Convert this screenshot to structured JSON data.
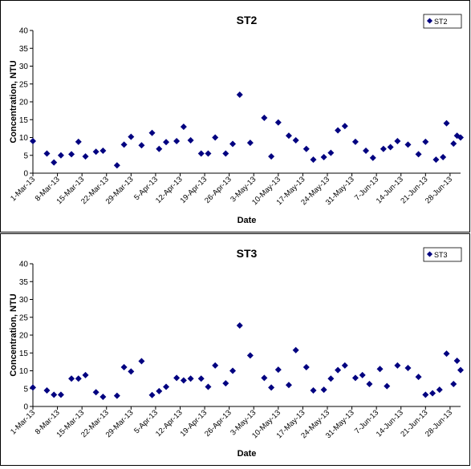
{
  "charts": [
    {
      "type": "scatter",
      "title": "ST2",
      "xlabel": "Date",
      "ylabel": "Concentration, NTU",
      "legend": {
        "label": "ST2",
        "placement": "top-right"
      },
      "color": "#000080",
      "ylim": [
        0,
        40
      ],
      "yticks": [
        "0",
        "5",
        "10",
        "15",
        "20",
        "25",
        "30",
        "35",
        "40"
      ],
      "xlim": [
        "2013-03-01",
        "2013-07-01"
      ],
      "xticks": [
        "1-Mar-13",
        "8-Mar-13",
        "15-Mar-13",
        "22-Mar-13",
        "29-Mar-13",
        "5-Apr-13",
        "12-Apr-13",
        "19-Apr-13",
        "26-Apr-13",
        "3-May-13",
        "10-May-13",
        "17-May-13",
        "24-May-13",
        "31-May-13",
        "7-Jun-13",
        "14-Jun-13",
        "21-Jun-13",
        "28-Jun-13"
      ],
      "points": [
        [
          "2013-03-01",
          9.0
        ],
        [
          "2013-03-05",
          5.5
        ],
        [
          "2013-03-07",
          3.0
        ],
        [
          "2013-03-09",
          5.0
        ],
        [
          "2013-03-12",
          5.3
        ],
        [
          "2013-03-14",
          8.8
        ],
        [
          "2013-03-16",
          4.7
        ],
        [
          "2013-03-19",
          6.0
        ],
        [
          "2013-03-21",
          6.3
        ],
        [
          "2013-03-25",
          2.2
        ],
        [
          "2013-03-27",
          8.0
        ],
        [
          "2013-03-29",
          10.2
        ],
        [
          "2013-04-01",
          7.8
        ],
        [
          "2013-04-04",
          11.3
        ],
        [
          "2013-04-06",
          6.8
        ],
        [
          "2013-04-08",
          8.7
        ],
        [
          "2013-04-11",
          9.0
        ],
        [
          "2013-04-13",
          13.0
        ],
        [
          "2013-04-15",
          9.2
        ],
        [
          "2013-04-18",
          5.5
        ],
        [
          "2013-04-20",
          5.5
        ],
        [
          "2013-04-22",
          10.0
        ],
        [
          "2013-04-25",
          5.5
        ],
        [
          "2013-04-27",
          8.2
        ],
        [
          "2013-04-29",
          22.0
        ],
        [
          "2013-05-02",
          8.5
        ],
        [
          "2013-05-06",
          15.5
        ],
        [
          "2013-05-08",
          4.7
        ],
        [
          "2013-05-10",
          14.2
        ],
        [
          "2013-05-13",
          10.5
        ],
        [
          "2013-05-15",
          9.2
        ],
        [
          "2013-05-18",
          6.8
        ],
        [
          "2013-05-20",
          3.8
        ],
        [
          "2013-05-23",
          4.5
        ],
        [
          "2013-05-25",
          5.7
        ],
        [
          "2013-05-27",
          12.0
        ],
        [
          "2013-05-29",
          13.2
        ],
        [
          "2013-06-01",
          8.8
        ],
        [
          "2013-06-04",
          6.3
        ],
        [
          "2013-06-06",
          4.3
        ],
        [
          "2013-06-09",
          6.8
        ],
        [
          "2013-06-11",
          7.3
        ],
        [
          "2013-06-13",
          9.0
        ],
        [
          "2013-06-16",
          8.0
        ],
        [
          "2013-06-19",
          5.3
        ],
        [
          "2013-06-21",
          8.8
        ],
        [
          "2013-06-24",
          3.8
        ],
        [
          "2013-06-26",
          4.5
        ],
        [
          "2013-06-27",
          14.0
        ],
        [
          "2013-06-29",
          8.3
        ],
        [
          "2013-06-30",
          10.5
        ],
        [
          "2013-07-01",
          10.0
        ]
      ]
    },
    {
      "type": "scatter",
      "title": "ST3",
      "xlabel": "Date",
      "ylabel": "Concentration, NTU",
      "legend": {
        "label": "ST3",
        "placement": "top-right"
      },
      "color": "#000080",
      "ylim": [
        0,
        40
      ],
      "yticks": [
        "0",
        "5",
        "10",
        "15",
        "20",
        "25",
        "30",
        "35",
        "40"
      ],
      "xlim": [
        "2013-03-01",
        "2013-07-01"
      ],
      "xticks": [
        "1-Mar-13",
        "8-Mar-13",
        "15-Mar-13",
        "22-Mar-13",
        "29-Mar-13",
        "5-Apr-13",
        "12-Apr-13",
        "19-Apr-13",
        "26-Apr-13",
        "3-May-13",
        "10-May-13",
        "17-May-13",
        "24-May-13",
        "31-May-13",
        "7-Jun-13",
        "14-Jun-13",
        "21-Jun-13",
        "28-Jun-13"
      ],
      "points": [
        [
          "2013-03-01",
          5.3
        ],
        [
          "2013-03-05",
          4.5
        ],
        [
          "2013-03-07",
          3.3
        ],
        [
          "2013-03-09",
          3.3
        ],
        [
          "2013-03-12",
          7.8
        ],
        [
          "2013-03-14",
          7.8
        ],
        [
          "2013-03-16",
          8.8
        ],
        [
          "2013-03-19",
          4.0
        ],
        [
          "2013-03-21",
          2.7
        ],
        [
          "2013-03-25",
          3.0
        ],
        [
          "2013-03-27",
          11.0
        ],
        [
          "2013-03-29",
          9.8
        ],
        [
          "2013-04-01",
          12.7
        ],
        [
          "2013-04-04",
          3.2
        ],
        [
          "2013-04-06",
          4.3
        ],
        [
          "2013-04-08",
          5.5
        ],
        [
          "2013-04-11",
          8.0
        ],
        [
          "2013-04-13",
          7.3
        ],
        [
          "2013-04-15",
          7.8
        ],
        [
          "2013-04-18",
          7.8
        ],
        [
          "2013-04-20",
          5.5
        ],
        [
          "2013-04-22",
          11.5
        ],
        [
          "2013-04-25",
          6.5
        ],
        [
          "2013-04-27",
          10.0
        ],
        [
          "2013-04-29",
          22.7
        ],
        [
          "2013-05-02",
          14.3
        ],
        [
          "2013-05-06",
          8.0
        ],
        [
          "2013-05-08",
          5.3
        ],
        [
          "2013-05-10",
          10.3
        ],
        [
          "2013-05-13",
          6.0
        ],
        [
          "2013-05-15",
          15.8
        ],
        [
          "2013-05-18",
          11.0
        ],
        [
          "2013-05-20",
          4.5
        ],
        [
          "2013-05-23",
          4.7
        ],
        [
          "2013-05-25",
          7.8
        ],
        [
          "2013-05-27",
          10.2
        ],
        [
          "2013-05-29",
          11.5
        ],
        [
          "2013-06-01",
          8.0
        ],
        [
          "2013-06-03",
          8.8
        ],
        [
          "2013-06-05",
          6.3
        ],
        [
          "2013-06-08",
          10.5
        ],
        [
          "2013-06-10",
          5.7
        ],
        [
          "2013-06-13",
          11.5
        ],
        [
          "2013-06-16",
          10.8
        ],
        [
          "2013-06-19",
          8.3
        ],
        [
          "2013-06-21",
          3.3
        ],
        [
          "2013-06-23",
          3.7
        ],
        [
          "2013-06-25",
          4.7
        ],
        [
          "2013-06-27",
          14.8
        ],
        [
          "2013-06-29",
          6.3
        ],
        [
          "2013-06-30",
          12.8
        ],
        [
          "2013-07-01",
          10.2
        ]
      ]
    }
  ]
}
